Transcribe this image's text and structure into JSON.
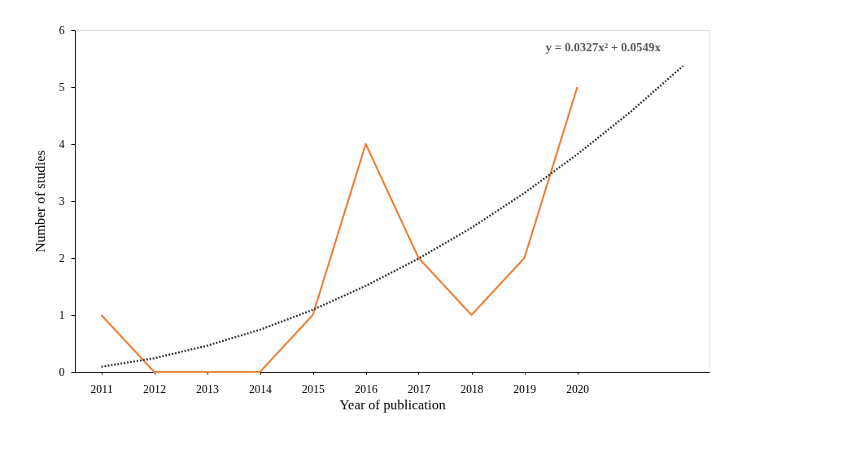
{
  "chart_data": {
    "type": "line",
    "xlabel": "Year of publication",
    "ylabel": "Number of studies",
    "x": [
      2011,
      2012,
      2013,
      2014,
      2015,
      2016,
      2017,
      2018,
      2019,
      2020
    ],
    "xlim": [
      2010.5,
      2022.5
    ],
    "xticks": [
      2011,
      2012,
      2013,
      2014,
      2015,
      2016,
      2017,
      2018,
      2019,
      2020
    ],
    "ylim": [
      0,
      6
    ],
    "yticks": [
      0,
      1,
      2,
      3,
      4,
      5,
      6
    ],
    "grid": false,
    "marker": "none",
    "series": [
      {
        "color": "#ed7d31",
        "line_style": "solid",
        "values": [
          1,
          0,
          0,
          0,
          1,
          4,
          2,
          1,
          2,
          5
        ]
      },
      {
        "type": "line",
        "color": "#333333",
        "line_style": "dotted",
        "x": [
          2011,
          2012,
          2013,
          2014,
          2015,
          2016,
          2017,
          2018,
          2019,
          2020,
          2021,
          2022
        ],
        "values": [
          0.09,
          0.24,
          0.46,
          0.74,
          1.09,
          1.51,
          1.99,
          2.53,
          3.14,
          3.82,
          4.56,
          5.37
        ]
      }
    ],
    "annotations": [
      "y = 0.0327x² + 0.0549x"
    ]
  }
}
